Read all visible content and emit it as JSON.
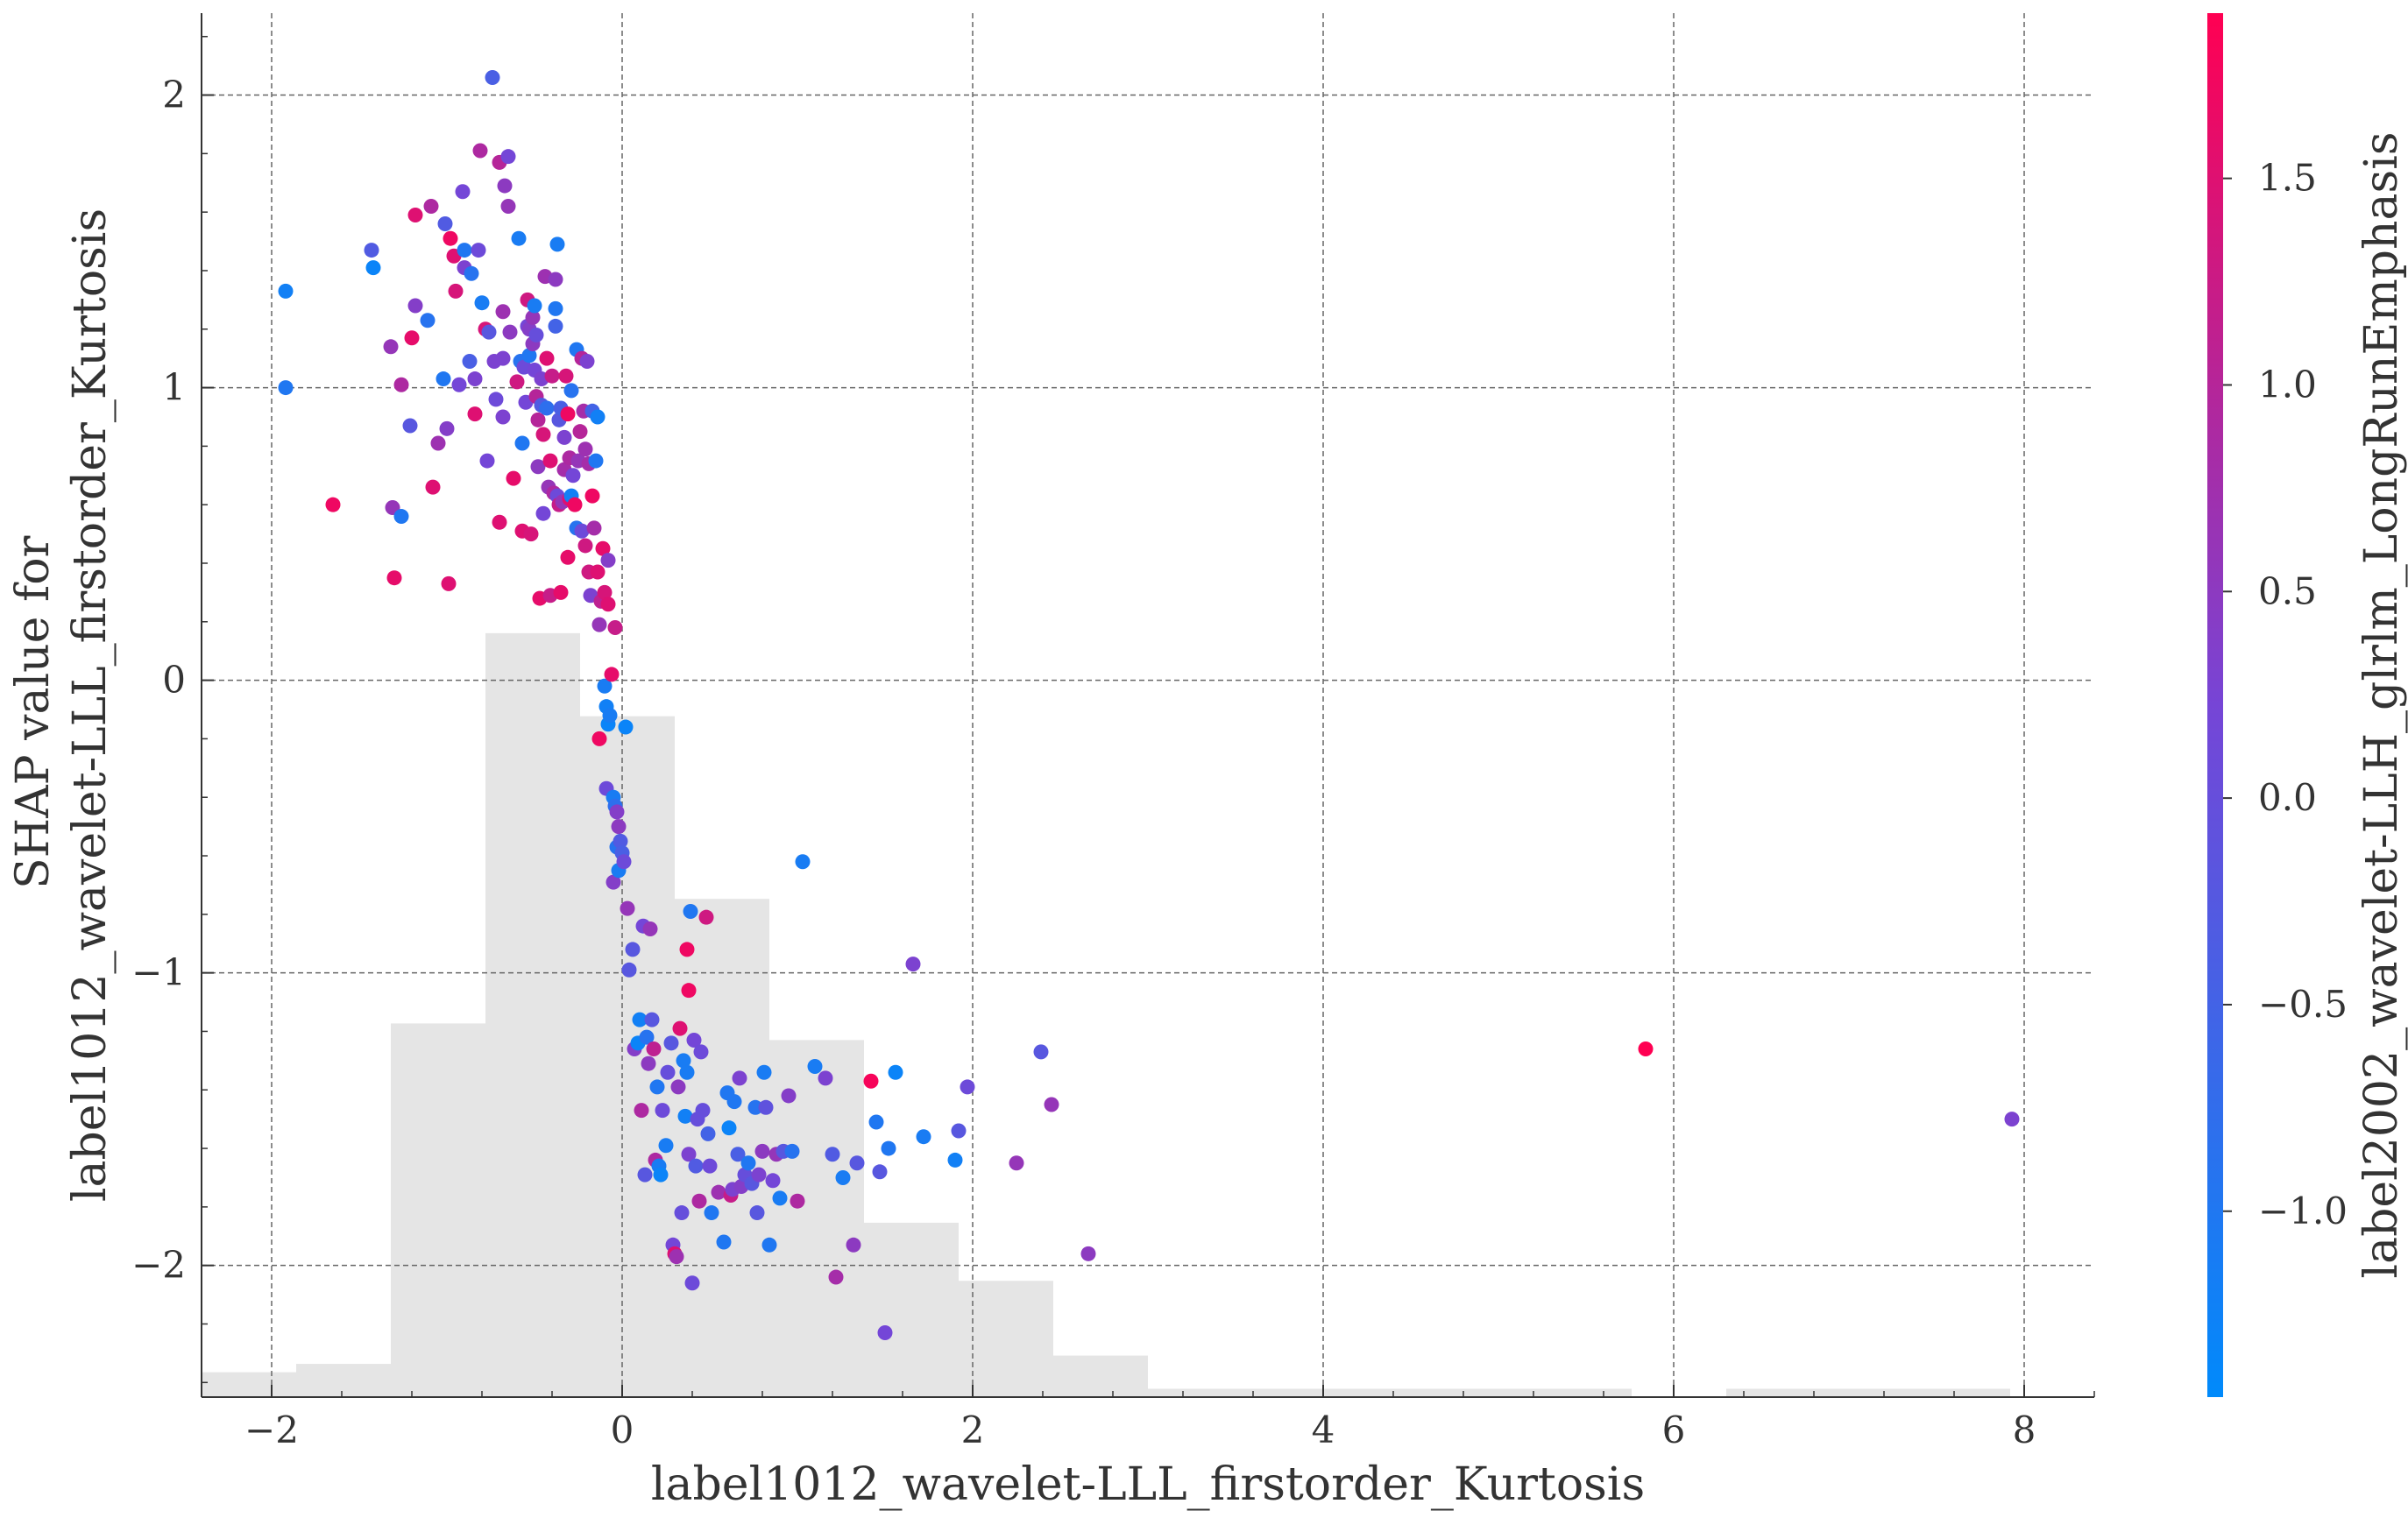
{
  "chart_data": {
    "type": "scatter",
    "title": "",
    "xlabel": "label1012_wavelet-LLL_firstorder_Kurtosis",
    "ylabel_lines": [
      "SHAP value for",
      "label1012_wavelet-LLL_firstorder_Kurtosis"
    ],
    "colorbar_label": "label2002_wavelet-LLH_glrlm_LongRunEmphasis",
    "xlim": [
      -2.4,
      8.4
    ],
    "ylim": [
      -2.45,
      2.28
    ],
    "color_range": [
      -1.45,
      1.9
    ],
    "grid": true,
    "x_ticks": [
      -2,
      0,
      2,
      4,
      6,
      8
    ],
    "x_tick_labels": [
      "−2",
      "0",
      "2",
      "4",
      "6",
      "8"
    ],
    "y_ticks": [
      -2,
      -1,
      0,
      1,
      2
    ],
    "y_tick_labels": [
      "−2",
      "−1",
      "0",
      "1",
      "2"
    ],
    "color_ticks": [
      -1.0,
      -0.5,
      0.0,
      0.5,
      1.0,
      1.5
    ],
    "color_tick_labels": [
      "−1.0",
      "−0.5",
      "0.0",
      "0.5",
      "1.0",
      "1.5"
    ],
    "colormap": [
      "#008afb",
      "#7645d6",
      "#ff0052"
    ],
    "histogram": {
      "bin_edges": [
        -2.4,
        -1.86,
        -1.32,
        -0.78,
        -0.24,
        0.3,
        0.84,
        1.38,
        1.92,
        2.46,
        3.0,
        5.76,
        6.3,
        7.92,
        8.4
      ],
      "relative_heights": [
        0.03,
        0.04,
        0.45,
        0.92,
        0.82,
        0.6,
        0.43,
        0.21,
        0.14,
        0.05,
        0.01,
        0.0,
        0.01,
        0.0,
        0.01
      ]
    },
    "points": [
      {
        "x": -1.92,
        "y": 1.33,
        "c": -1.2
      },
      {
        "x": -1.92,
        "y": 1.0,
        "c": -1.0
      },
      {
        "x": -1.65,
        "y": 0.6,
        "c": 1.7
      },
      {
        "x": -1.43,
        "y": 1.47,
        "c": -0.3
      },
      {
        "x": -1.42,
        "y": 1.41,
        "c": -1.3
      },
      {
        "x": -1.32,
        "y": 1.14,
        "c": 0.6
      },
      {
        "x": -1.31,
        "y": 0.59,
        "c": 0.6
      },
      {
        "x": -1.3,
        "y": 0.35,
        "c": 1.6
      },
      {
        "x": -1.26,
        "y": 0.56,
        "c": -1.0
      },
      {
        "x": -1.26,
        "y": 1.01,
        "c": 0.9
      },
      {
        "x": -1.21,
        "y": 0.87,
        "c": -0.2
      },
      {
        "x": -1.2,
        "y": 1.17,
        "c": 1.6
      },
      {
        "x": -1.18,
        "y": 1.59,
        "c": 1.5
      },
      {
        "x": -1.18,
        "y": 1.28,
        "c": 0.4
      },
      {
        "x": -1.11,
        "y": 1.23,
        "c": -0.9
      },
      {
        "x": -1.09,
        "y": 1.62,
        "c": 0.9
      },
      {
        "x": -1.08,
        "y": 0.66,
        "c": 1.5
      },
      {
        "x": -1.05,
        "y": 0.81,
        "c": 0.7
      },
      {
        "x": -1.02,
        "y": 1.03,
        "c": -1.0
      },
      {
        "x": -1.01,
        "y": 1.56,
        "c": -0.3
      },
      {
        "x": -1.0,
        "y": 0.86,
        "c": 0.4
      },
      {
        "x": -0.99,
        "y": 0.33,
        "c": 1.5
      },
      {
        "x": -0.98,
        "y": 1.51,
        "c": 1.7
      },
      {
        "x": -0.96,
        "y": 1.45,
        "c": 1.5
      },
      {
        "x": -0.95,
        "y": 1.33,
        "c": 1.4
      },
      {
        "x": -0.93,
        "y": 1.01,
        "c": 0.2
      },
      {
        "x": -0.91,
        "y": 1.67,
        "c": 0.2
      },
      {
        "x": -0.9,
        "y": 1.47,
        "c": -1.0
      },
      {
        "x": -0.9,
        "y": 1.41,
        "c": 0.3
      },
      {
        "x": -0.87,
        "y": 1.09,
        "c": -0.4
      },
      {
        "x": -0.86,
        "y": 1.39,
        "c": -0.9
      },
      {
        "x": -0.84,
        "y": 1.03,
        "c": 0.3
      },
      {
        "x": -0.84,
        "y": 0.91,
        "c": 1.5
      },
      {
        "x": -0.82,
        "y": 1.47,
        "c": 0.1
      },
      {
        "x": -0.81,
        "y": 1.81,
        "c": 0.9
      },
      {
        "x": -0.8,
        "y": 1.29,
        "c": -1.1
      },
      {
        "x": -0.78,
        "y": 1.2,
        "c": 1.4
      },
      {
        "x": -0.77,
        "y": 0.75,
        "c": 0.2
      },
      {
        "x": -0.76,
        "y": 1.19,
        "c": -0.2
      },
      {
        "x": -0.74,
        "y": 2.06,
        "c": -0.4
      },
      {
        "x": -0.73,
        "y": 1.09,
        "c": 0.3
      },
      {
        "x": -0.72,
        "y": 0.96,
        "c": 0.1
      },
      {
        "x": -0.7,
        "y": 1.77,
        "c": 1.0
      },
      {
        "x": -0.7,
        "y": 0.54,
        "c": 1.5
      },
      {
        "x": -0.68,
        "y": 1.26,
        "c": 0.7
      },
      {
        "x": -0.68,
        "y": 0.9,
        "c": 0.3
      },
      {
        "x": -0.68,
        "y": 1.1,
        "c": 0.3
      },
      {
        "x": -0.67,
        "y": 1.69,
        "c": 0.5
      },
      {
        "x": -0.65,
        "y": 1.79,
        "c": 0.2
      },
      {
        "x": -0.65,
        "y": 1.62,
        "c": 0.6
      },
      {
        "x": -0.64,
        "y": 1.19,
        "c": 0.5
      },
      {
        "x": -0.62,
        "y": 0.69,
        "c": 1.6
      },
      {
        "x": -0.6,
        "y": 1.02,
        "c": 1.3
      },
      {
        "x": -0.59,
        "y": 1.51,
        "c": -1.1
      },
      {
        "x": -0.58,
        "y": 1.09,
        "c": -0.9
      },
      {
        "x": -0.57,
        "y": 0.51,
        "c": 1.5
      },
      {
        "x": -0.57,
        "y": 0.81,
        "c": -1.0
      },
      {
        "x": -0.56,
        "y": 1.07,
        "c": 0.1
      },
      {
        "x": -0.55,
        "y": 0.95,
        "c": 0.2
      },
      {
        "x": -0.54,
        "y": 1.21,
        "c": 0.2
      },
      {
        "x": -0.54,
        "y": 1.3,
        "c": 1.3
      },
      {
        "x": -0.53,
        "y": 1.2,
        "c": 0.4
      },
      {
        "x": -0.53,
        "y": 1.11,
        "c": -1.0
      },
      {
        "x": -0.52,
        "y": 0.5,
        "c": 1.4
      },
      {
        "x": -0.51,
        "y": 1.24,
        "c": 0.6
      },
      {
        "x": -0.51,
        "y": 1.15,
        "c": 0.5
      },
      {
        "x": -0.5,
        "y": 1.06,
        "c": 0.2
      },
      {
        "x": -0.5,
        "y": 1.28,
        "c": -1.1
      },
      {
        "x": -0.49,
        "y": 0.97,
        "c": 1.0
      },
      {
        "x": -0.49,
        "y": 1.18,
        "c": 0.0
      },
      {
        "x": -0.48,
        "y": 0.89,
        "c": 1.0
      },
      {
        "x": -0.48,
        "y": 0.73,
        "c": 0.5
      },
      {
        "x": -0.47,
        "y": 0.28,
        "c": 1.6
      },
      {
        "x": -0.46,
        "y": 1.03,
        "c": 0.3
      },
      {
        "x": -0.46,
        "y": 0.94,
        "c": -0.3
      },
      {
        "x": -0.45,
        "y": 0.84,
        "c": 1.4
      },
      {
        "x": -0.45,
        "y": 0.57,
        "c": 0.2
      },
      {
        "x": -0.44,
        "y": 1.38,
        "c": 0.7
      },
      {
        "x": -0.43,
        "y": 1.1,
        "c": 1.5
      },
      {
        "x": -0.43,
        "y": 0.93,
        "c": -0.8
      },
      {
        "x": -0.42,
        "y": 0.66,
        "c": 0.6
      },
      {
        "x": -0.41,
        "y": 0.75,
        "c": 1.5
      },
      {
        "x": -0.41,
        "y": 0.29,
        "c": 1.2
      },
      {
        "x": -0.4,
        "y": 1.04,
        "c": 1.2
      },
      {
        "x": -0.39,
        "y": 0.64,
        "c": 0.9
      },
      {
        "x": -0.38,
        "y": 1.27,
        "c": -1.0
      },
      {
        "x": -0.38,
        "y": 1.37,
        "c": 0.5
      },
      {
        "x": -0.38,
        "y": 1.21,
        "c": -0.5
      },
      {
        "x": -0.37,
        "y": 0.63,
        "c": 0.1
      },
      {
        "x": -0.37,
        "y": 1.49,
        "c": -1.1
      },
      {
        "x": -0.36,
        "y": 0.89,
        "c": -0.2
      },
      {
        "x": -0.36,
        "y": 0.6,
        "c": 1.2
      },
      {
        "x": -0.35,
        "y": 0.93,
        "c": -0.4
      },
      {
        "x": -0.35,
        "y": 0.3,
        "c": 1.6
      },
      {
        "x": -0.34,
        "y": 0.61,
        "c": 0.6
      },
      {
        "x": -0.33,
        "y": 0.83,
        "c": 0.3
      },
      {
        "x": -0.33,
        "y": 0.72,
        "c": 0.8
      },
      {
        "x": -0.32,
        "y": 1.04,
        "c": 1.4
      },
      {
        "x": -0.31,
        "y": 0.91,
        "c": 1.7
      },
      {
        "x": -0.31,
        "y": 0.42,
        "c": 1.6
      },
      {
        "x": -0.3,
        "y": 0.76,
        "c": 0.9
      },
      {
        "x": -0.3,
        "y": 0.62,
        "c": 1.5
      },
      {
        "x": -0.29,
        "y": 0.99,
        "c": -0.9
      },
      {
        "x": -0.29,
        "y": 0.63,
        "c": -1.2
      },
      {
        "x": -0.28,
        "y": 0.7,
        "c": 0.2
      },
      {
        "x": -0.27,
        "y": 0.6,
        "c": 1.7
      },
      {
        "x": -0.26,
        "y": 1.13,
        "c": -1.0
      },
      {
        "x": -0.26,
        "y": 0.52,
        "c": -0.9
      },
      {
        "x": -0.25,
        "y": 0.75,
        "c": 0.6
      },
      {
        "x": -0.24,
        "y": 0.85,
        "c": 1.0
      },
      {
        "x": -0.23,
        "y": 1.1,
        "c": 1.0
      },
      {
        "x": -0.23,
        "y": 0.51,
        "c": 0.1
      },
      {
        "x": -0.22,
        "y": 0.92,
        "c": 0.8
      },
      {
        "x": -0.21,
        "y": 0.79,
        "c": 0.7
      },
      {
        "x": -0.21,
        "y": 0.46,
        "c": 1.3
      },
      {
        "x": -0.2,
        "y": 1.09,
        "c": 0.3
      },
      {
        "x": -0.19,
        "y": 0.74,
        "c": 0.8
      },
      {
        "x": -0.19,
        "y": 0.37,
        "c": 1.3
      },
      {
        "x": -0.18,
        "y": 0.29,
        "c": 0.3
      },
      {
        "x": -0.17,
        "y": 0.92,
        "c": -0.5
      },
      {
        "x": -0.17,
        "y": 0.63,
        "c": 1.7
      },
      {
        "x": -0.16,
        "y": 0.52,
        "c": 0.8
      },
      {
        "x": -0.15,
        "y": 0.75,
        "c": -1.0
      },
      {
        "x": -0.14,
        "y": 0.9,
        "c": -1.2
      },
      {
        "x": -0.14,
        "y": 0.37,
        "c": 1.5
      },
      {
        "x": -0.13,
        "y": 0.19,
        "c": 0.6
      },
      {
        "x": -0.13,
        "y": -0.2,
        "c": 1.7
      },
      {
        "x": -0.12,
        "y": 0.27,
        "c": 1.1
      },
      {
        "x": -0.11,
        "y": 0.45,
        "c": 1.6
      },
      {
        "x": -0.1,
        "y": -0.02,
        "c": -1.1
      },
      {
        "x": -0.1,
        "y": 0.3,
        "c": 1.4
      },
      {
        "x": -0.09,
        "y": -0.09,
        "c": -1.2
      },
      {
        "x": -0.09,
        "y": -0.37,
        "c": 0.1
      },
      {
        "x": -0.08,
        "y": 0.41,
        "c": 0.4
      },
      {
        "x": -0.08,
        "y": 0.26,
        "c": 1.5
      },
      {
        "x": -0.08,
        "y": -0.15,
        "c": -1.3
      },
      {
        "x": -0.07,
        "y": -0.12,
        "c": -1.1
      },
      {
        "x": -0.06,
        "y": 0.02,
        "c": 1.6
      },
      {
        "x": -0.05,
        "y": -0.4,
        "c": -1.1
      },
      {
        "x": -0.05,
        "y": -0.69,
        "c": 0.4
      },
      {
        "x": -0.04,
        "y": -0.43,
        "c": -0.8
      },
      {
        "x": -0.04,
        "y": 0.18,
        "c": 1.2
      },
      {
        "x": -0.03,
        "y": -0.57,
        "c": -0.9
      },
      {
        "x": -0.03,
        "y": -0.45,
        "c": 0.4
      },
      {
        "x": -0.02,
        "y": -0.65,
        "c": -1.1
      },
      {
        "x": -0.02,
        "y": -0.5,
        "c": 0.5
      },
      {
        "x": -0.01,
        "y": -0.55,
        "c": -0.3
      },
      {
        "x": 0.0,
        "y": -0.59,
        "c": -0.4
      },
      {
        "x": 0.01,
        "y": -0.62,
        "c": 0.1
      },
      {
        "x": 0.02,
        "y": -0.16,
        "c": -1.3
      },
      {
        "x": 0.03,
        "y": -0.78,
        "c": 0.6
      },
      {
        "x": 0.04,
        "y": -0.99,
        "c": -0.2
      },
      {
        "x": 0.06,
        "y": -0.92,
        "c": -0.2
      },
      {
        "x": 0.07,
        "y": -1.26,
        "c": 0.4
      },
      {
        "x": 0.09,
        "y": -1.24,
        "c": -1.3
      },
      {
        "x": 0.1,
        "y": -1.16,
        "c": -1.2
      },
      {
        "x": 0.11,
        "y": -1.47,
        "c": 0.9
      },
      {
        "x": 0.12,
        "y": -0.84,
        "c": 0.2
      },
      {
        "x": 0.13,
        "y": -1.69,
        "c": -0.2
      },
      {
        "x": 0.14,
        "y": -1.22,
        "c": -0.9
      },
      {
        "x": 0.15,
        "y": -1.31,
        "c": 0.5
      },
      {
        "x": 0.16,
        "y": -0.85,
        "c": 0.6
      },
      {
        "x": 0.17,
        "y": -1.16,
        "c": -0.2
      },
      {
        "x": 0.18,
        "y": -1.26,
        "c": 1.1
      },
      {
        "x": 0.19,
        "y": -1.64,
        "c": 0.9
      },
      {
        "x": 0.2,
        "y": -1.39,
        "c": -1.0
      },
      {
        "x": 0.21,
        "y": -1.66,
        "c": -1.1
      },
      {
        "x": 0.22,
        "y": -1.69,
        "c": -1.3
      },
      {
        "x": 0.23,
        "y": -1.47,
        "c": 0.1
      },
      {
        "x": 0.25,
        "y": -1.59,
        "c": -1.1
      },
      {
        "x": 0.26,
        "y": -1.34,
        "c": 0.0
      },
      {
        "x": 0.28,
        "y": -1.24,
        "c": -0.2
      },
      {
        "x": 0.29,
        "y": -1.93,
        "c": 0.2
      },
      {
        "x": 0.3,
        "y": -1.96,
        "c": 1.5
      },
      {
        "x": 0.31,
        "y": -1.97,
        "c": 0.7
      },
      {
        "x": 0.32,
        "y": -1.39,
        "c": 0.5
      },
      {
        "x": 0.33,
        "y": -1.19,
        "c": 1.5
      },
      {
        "x": 0.34,
        "y": -1.82,
        "c": 0.0
      },
      {
        "x": 0.35,
        "y": -1.3,
        "c": -1.1
      },
      {
        "x": 0.36,
        "y": -1.49,
        "c": -1.2
      },
      {
        "x": 0.37,
        "y": -1.34,
        "c": -1.1
      },
      {
        "x": 0.37,
        "y": -0.92,
        "c": 1.7
      },
      {
        "x": 0.38,
        "y": -1.06,
        "c": 1.7
      },
      {
        "x": 0.38,
        "y": -1.62,
        "c": 0.3
      },
      {
        "x": 0.39,
        "y": -0.79,
        "c": -1.0
      },
      {
        "x": 0.4,
        "y": -2.06,
        "c": 0.1
      },
      {
        "x": 0.41,
        "y": -1.23,
        "c": 0.2
      },
      {
        "x": 0.42,
        "y": -1.66,
        "c": -0.3
      },
      {
        "x": 0.43,
        "y": -1.5,
        "c": 0.0
      },
      {
        "x": 0.44,
        "y": -1.78,
        "c": 0.9
      },
      {
        "x": 0.45,
        "y": -1.27,
        "c": 0.1
      },
      {
        "x": 0.46,
        "y": -1.47,
        "c": 0.0
      },
      {
        "x": 0.48,
        "y": -0.81,
        "c": 1.3
      },
      {
        "x": 0.49,
        "y": -1.55,
        "c": -0.5
      },
      {
        "x": 0.5,
        "y": -1.66,
        "c": 0.1
      },
      {
        "x": 0.51,
        "y": -1.82,
        "c": -1.0
      },
      {
        "x": 0.55,
        "y": -1.75,
        "c": 0.7
      },
      {
        "x": 0.58,
        "y": -1.92,
        "c": -1.0
      },
      {
        "x": 0.6,
        "y": -1.41,
        "c": -1.0
      },
      {
        "x": 0.61,
        "y": -1.53,
        "c": -1.3
      },
      {
        "x": 0.62,
        "y": -1.76,
        "c": 1.2
      },
      {
        "x": 0.63,
        "y": -1.74,
        "c": 0.3
      },
      {
        "x": 0.64,
        "y": -1.44,
        "c": -1.0
      },
      {
        "x": 0.66,
        "y": -1.62,
        "c": -0.4
      },
      {
        "x": 0.67,
        "y": -1.36,
        "c": 0.3
      },
      {
        "x": 0.68,
        "y": -1.73,
        "c": 0.4
      },
      {
        "x": 0.7,
        "y": -1.69,
        "c": 0.0
      },
      {
        "x": 0.72,
        "y": -1.65,
        "c": -1.0
      },
      {
        "x": 0.74,
        "y": -1.72,
        "c": -0.2
      },
      {
        "x": 0.76,
        "y": -1.46,
        "c": -0.9
      },
      {
        "x": 0.77,
        "y": -1.82,
        "c": -0.2
      },
      {
        "x": 0.78,
        "y": -1.69,
        "c": 0.3
      },
      {
        "x": 0.8,
        "y": -1.61,
        "c": 0.5
      },
      {
        "x": 0.81,
        "y": -1.34,
        "c": -1.1
      },
      {
        "x": 0.82,
        "y": -1.46,
        "c": -0.1
      },
      {
        "x": 0.84,
        "y": -1.93,
        "c": -1.0
      },
      {
        "x": 0.86,
        "y": -1.71,
        "c": 0.2
      },
      {
        "x": 0.88,
        "y": -1.62,
        "c": 0.6
      },
      {
        "x": 0.9,
        "y": -1.77,
        "c": -1.1
      },
      {
        "x": 0.92,
        "y": -1.61,
        "c": -0.2
      },
      {
        "x": 0.95,
        "y": -1.42,
        "c": 0.4
      },
      {
        "x": 0.97,
        "y": -1.61,
        "c": -0.9
      },
      {
        "x": 1.0,
        "y": -1.78,
        "c": 0.9
      },
      {
        "x": 1.03,
        "y": -0.62,
        "c": -1.1
      },
      {
        "x": 1.1,
        "y": -1.32,
        "c": -1.1
      },
      {
        "x": 1.16,
        "y": -1.36,
        "c": 0.3
      },
      {
        "x": 1.2,
        "y": -1.62,
        "c": -0.3
      },
      {
        "x": 1.22,
        "y": -2.04,
        "c": 0.8
      },
      {
        "x": 1.26,
        "y": -1.7,
        "c": -1.1
      },
      {
        "x": 1.32,
        "y": -1.93,
        "c": 0.5
      },
      {
        "x": 1.34,
        "y": -1.65,
        "c": -0.2
      },
      {
        "x": 1.42,
        "y": -1.37,
        "c": 1.8
      },
      {
        "x": 1.45,
        "y": -1.51,
        "c": -1.0
      },
      {
        "x": 1.47,
        "y": -1.68,
        "c": -0.2
      },
      {
        "x": 1.5,
        "y": -2.23,
        "c": 0.2
      },
      {
        "x": 1.52,
        "y": -1.6,
        "c": -1.0
      },
      {
        "x": 1.56,
        "y": -1.34,
        "c": -1.3
      },
      {
        "x": 1.66,
        "y": -0.97,
        "c": 0.3
      },
      {
        "x": 1.72,
        "y": -1.56,
        "c": -1.1
      },
      {
        "x": 1.9,
        "y": -1.64,
        "c": -1.2
      },
      {
        "x": 1.92,
        "y": -1.54,
        "c": -0.2
      },
      {
        "x": 1.97,
        "y": -1.39,
        "c": 0.1
      },
      {
        "x": 2.25,
        "y": -1.65,
        "c": 0.6
      },
      {
        "x": 2.39,
        "y": -1.27,
        "c": -0.2
      },
      {
        "x": 2.45,
        "y": -1.45,
        "c": 0.6
      },
      {
        "x": 2.66,
        "y": -1.96,
        "c": 0.5
      },
      {
        "x": 5.84,
        "y": -1.26,
        "c": 1.9
      },
      {
        "x": 7.93,
        "y": -1.5,
        "c": 0.3
      }
    ]
  }
}
